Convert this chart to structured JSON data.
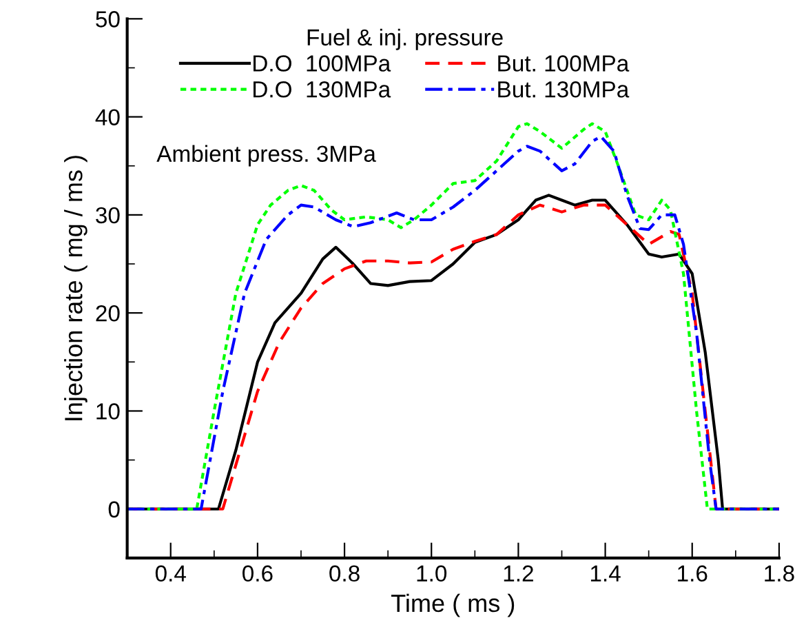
{
  "chart_data": {
    "type": "line",
    "xlabel": "Time ( ms )",
    "ylabel": "Injection rate ( mg / ms )",
    "legend_title": "Fuel & inj. pressure",
    "legend": "top left",
    "grid": false,
    "marker": "none",
    "xlim": [
      0.3,
      1.8
    ],
    "xticks": [
      0.4,
      0.6,
      0.8,
      {
        "value": 1.0,
        "label": "1.0"
      },
      1.2,
      1.4,
      1.6,
      1.8
    ],
    "ylim": [
      -5,
      50
    ],
    "yticks": [
      0,
      10,
      20,
      30,
      40,
      50
    ],
    "annotations": [
      "Ambient press. 3MPa"
    ],
    "series": [
      {
        "name": "D.O  100MPa",
        "color": "#000000",
        "line_style": "solid",
        "x": [
          0.3,
          0.51,
          0.55,
          0.6,
          0.64,
          0.7,
          0.75,
          0.78,
          0.82,
          0.86,
          0.9,
          0.95,
          1.0,
          1.05,
          1.1,
          1.15,
          1.2,
          1.24,
          1.27,
          1.3,
          1.33,
          1.37,
          1.4,
          1.45,
          1.5,
          1.53,
          1.57,
          1.6,
          1.63,
          1.66,
          1.67,
          1.8
        ],
        "values": [
          0,
          0,
          6,
          15,
          19,
          22,
          25.5,
          26.7,
          25,
          23,
          22.8,
          23.2,
          23.3,
          25,
          27.2,
          28,
          29.5,
          31.5,
          32,
          31.5,
          31,
          31.5,
          31.5,
          29,
          26,
          25.7,
          26,
          24,
          16,
          5,
          0,
          0
        ]
      },
      {
        "name": "But. 100MPa",
        "color": "#ff0000",
        "line_style": "dashed",
        "x": [
          0.3,
          0.52,
          0.56,
          0.6,
          0.65,
          0.7,
          0.75,
          0.8,
          0.85,
          0.9,
          0.95,
          1.0,
          1.05,
          1.1,
          1.15,
          1.2,
          1.25,
          1.3,
          1.35,
          1.4,
          1.45,
          1.5,
          1.55,
          1.57,
          1.6,
          1.63,
          1.655,
          1.8
        ],
        "values": [
          0,
          0,
          6,
          12,
          17,
          20.5,
          23,
          24.5,
          25.3,
          25.3,
          25.1,
          25.2,
          26.5,
          27.3,
          28,
          30,
          31,
          30.3,
          31,
          31,
          29,
          27,
          28.3,
          28,
          22,
          10,
          0,
          0
        ]
      },
      {
        "name": "D.O  130MPa",
        "color": "#00ff00",
        "line_style": "dotted",
        "x": [
          0.3,
          0.46,
          0.5,
          0.55,
          0.6,
          0.63,
          0.67,
          0.7,
          0.73,
          0.77,
          0.8,
          0.85,
          0.9,
          0.93,
          0.96,
          1.0,
          1.05,
          1.1,
          1.15,
          1.2,
          1.22,
          1.25,
          1.3,
          1.35,
          1.37,
          1.4,
          1.43,
          1.47,
          1.5,
          1.53,
          1.55,
          1.58,
          1.61,
          1.635,
          1.8
        ],
        "values": [
          0,
          0,
          10,
          22,
          29,
          31,
          32.5,
          33,
          32.5,
          30.5,
          29.5,
          29.8,
          29.5,
          28.7,
          29.5,
          31,
          33.2,
          33.5,
          35.5,
          39,
          39.3,
          38.5,
          36.8,
          38.7,
          39.3,
          38.5,
          35,
          30,
          29.5,
          31.5,
          30.5,
          24,
          10,
          0,
          0
        ]
      },
      {
        "name": "But. 130MPa",
        "color": "#0000ff",
        "line_style": "dashdot",
        "x": [
          0.3,
          0.47,
          0.52,
          0.57,
          0.62,
          0.67,
          0.7,
          0.73,
          0.78,
          0.82,
          0.86,
          0.92,
          0.96,
          1.0,
          1.05,
          1.1,
          1.15,
          1.2,
          1.22,
          1.25,
          1.3,
          1.33,
          1.37,
          1.39,
          1.42,
          1.45,
          1.48,
          1.5,
          1.53,
          1.56,
          1.58,
          1.61,
          1.64,
          1.655,
          1.8
        ],
        "values": [
          0,
          0,
          12,
          22,
          27.5,
          30,
          31,
          30.8,
          29.5,
          28.8,
          29.2,
          30.2,
          29.5,
          29.5,
          30.8,
          32.5,
          34.5,
          36.5,
          37,
          36.5,
          34.5,
          35.2,
          37.5,
          38,
          36.5,
          32,
          28.6,
          28.5,
          30,
          30,
          27,
          18,
          5,
          0,
          0
        ]
      }
    ]
  }
}
